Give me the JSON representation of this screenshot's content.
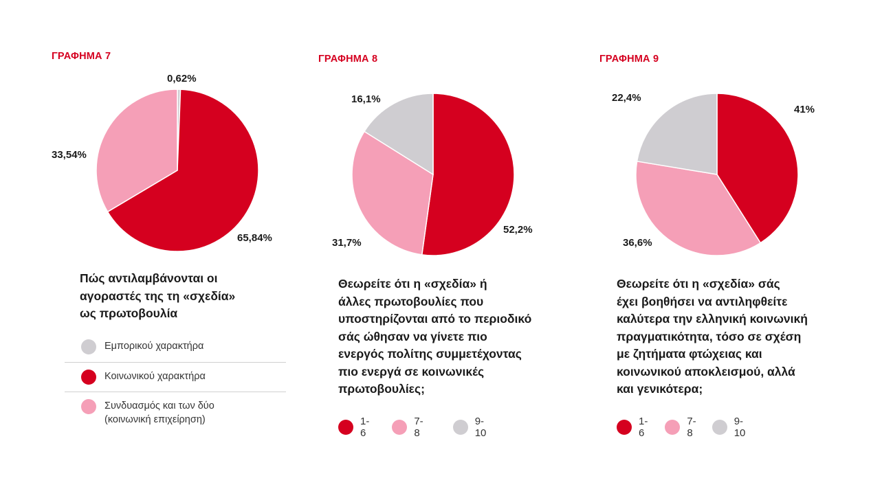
{
  "colors": {
    "red": "#d5001f",
    "pink": "#f59fb7",
    "grey": "#cfcdd1",
    "accent": "#d5001f"
  },
  "charts": [
    {
      "label": "ΓΡΑΦΗΜΑ 7",
      "question": [
        "Πώς αντιλαμβάνονται οι",
        "αγοραστές της τη «σχεδία»",
        "ως πρωτοβουλία"
      ],
      "legend": [
        {
          "label": [
            "Εμπορικού χαρακτήρα"
          ],
          "color": "grey"
        },
        {
          "label": [
            "Κοινωνικού χαρακτήρα"
          ],
          "color": "red"
        },
        {
          "label": [
            "Συνδυασμός και των δύο",
            "(κοινωνική επιχείρηση)"
          ],
          "color": "pink"
        }
      ]
    },
    {
      "label": "ΓΡΑΦΗΜΑ 8",
      "question": [
        "Θεωρείτε ότι η «σχεδία» ή",
        "άλλες πρωτοβουλίες που",
        "υποστηρίζονται από το περιοδικό",
        "σάς ώθησαν να γίνετε πιο",
        "ενεργός πολίτης συμμετέχοντας",
        "πιο ενεργά σε κοινωνικές",
        "πρωτοβουλίες;"
      ],
      "legend": [
        {
          "label": [
            "1-6"
          ],
          "color": "red"
        },
        {
          "label": [
            "7-8"
          ],
          "color": "pink"
        },
        {
          "label": [
            "9-10"
          ],
          "color": "grey"
        }
      ]
    },
    {
      "label": "ΓΡΑΦΗΜΑ 9",
      "question": [
        "Θεωρείτε ότι η «σχεδία» σάς",
        "έχει βοηθήσει να αντιληφθείτε",
        "καλύτερα την ελληνική κοινωνική",
        "πραγματικότητα, τόσο σε σχέση",
        "με ζητήματα φτώχειας και",
        "κοινωνικού αποκλεισμού, αλλά",
        "και γενικότερα;"
      ],
      "legend": [
        {
          "label": [
            "1-6"
          ],
          "color": "red"
        },
        {
          "label": [
            "7-8"
          ],
          "color": "pink"
        },
        {
          "label": [
            "9-10"
          ],
          "color": "grey"
        }
      ]
    }
  ],
  "chart_data": [
    {
      "type": "pie",
      "title": "Πώς αντιλαμβάνονται οι αγοραστές της τη «σχεδία» ως πρωτοβουλία",
      "slices": [
        {
          "name": "Εμπορικού χαρακτήρα",
          "value": 0.62,
          "label": "0,62%",
          "color": "grey"
        },
        {
          "name": "Κοινωνικού χαρακτήρα",
          "value": 65.84,
          "label": "65,84%",
          "color": "red"
        },
        {
          "name": "Συνδυασμός και των δύο (κοινωνική επιχείρηση)",
          "value": 33.54,
          "label": "33,54%",
          "color": "pink"
        }
      ],
      "legend_placement": "bottom"
    },
    {
      "type": "pie",
      "title": "Θεωρείτε ότι η «σχεδία» ή άλλες πρωτοβουλίες που υποστηρίζονται από το περιοδικό σάς ώθησαν να γίνετε πιο ενεργός πολίτης συμμετέχοντας πιο ενεργά σε κοινωνικές πρωτοβουλίες;",
      "slices": [
        {
          "name": "1-6",
          "value": 52.2,
          "label": "52,2%",
          "color": "red"
        },
        {
          "name": "7-8",
          "value": 31.7,
          "label": "31,7%",
          "color": "pink"
        },
        {
          "name": "9-10",
          "value": 16.1,
          "label": "16,1%",
          "color": "grey"
        }
      ],
      "legend_placement": "bottom"
    },
    {
      "type": "pie",
      "title": "Θεωρείτε ότι η «σχεδία» σάς έχει βοηθήσει να αντιληφθείτε καλύτερα την ελληνική κοινωνική πραγματικότητα, τόσο σε σχέση με ζητήματα φτώχειας και κοινωνικού αποκλεισμού, αλλά και γενικότερα;",
      "slices": [
        {
          "name": "1-6",
          "value": 41,
          "label": "41%",
          "color": "red"
        },
        {
          "name": "7-8",
          "value": 36.6,
          "label": "36,6%",
          "color": "pink"
        },
        {
          "name": "9-10",
          "value": 22.4,
          "label": "22,4%",
          "color": "grey"
        }
      ],
      "legend_placement": "bottom"
    }
  ]
}
